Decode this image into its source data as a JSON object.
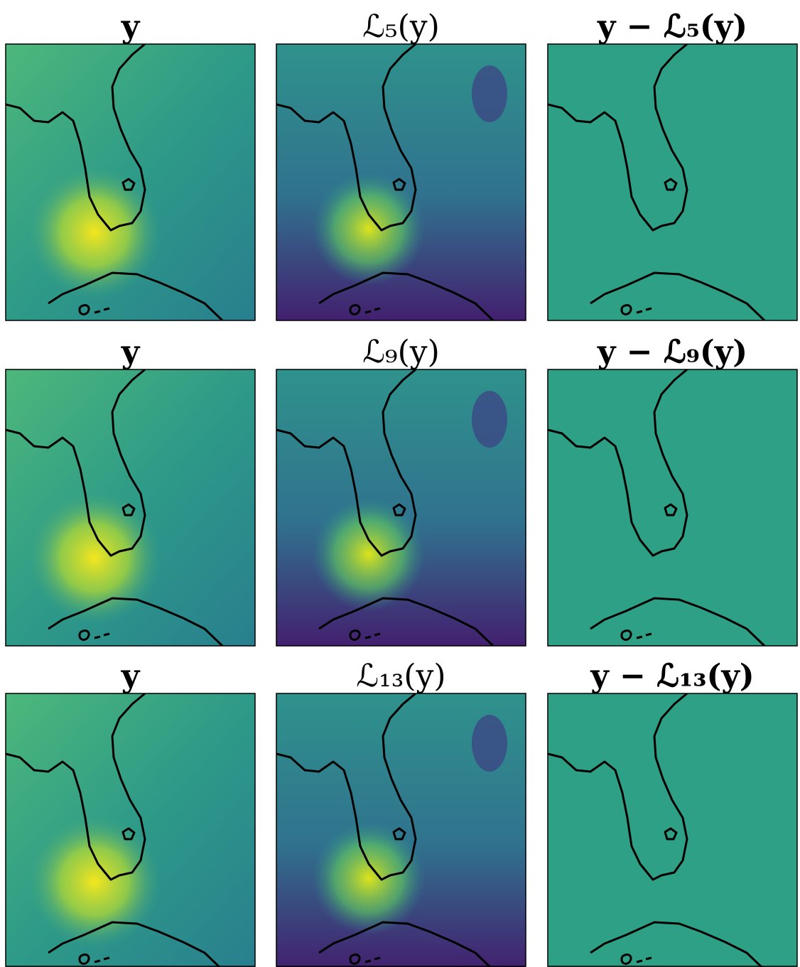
{
  "panels": [
    {
      "titles": [
        "y",
        "ℒ₅(y)",
        "y − ℒ₅(y)"
      ]
    },
    {
      "titles": [
        "y",
        "ℒ₉(y)",
        "y − ℒ₉(y)"
      ]
    },
    {
      "titles": [
        "y",
        "ℒ₁₃(y)",
        "y − ℒ₁₃(y)"
      ]
    }
  ]
}
